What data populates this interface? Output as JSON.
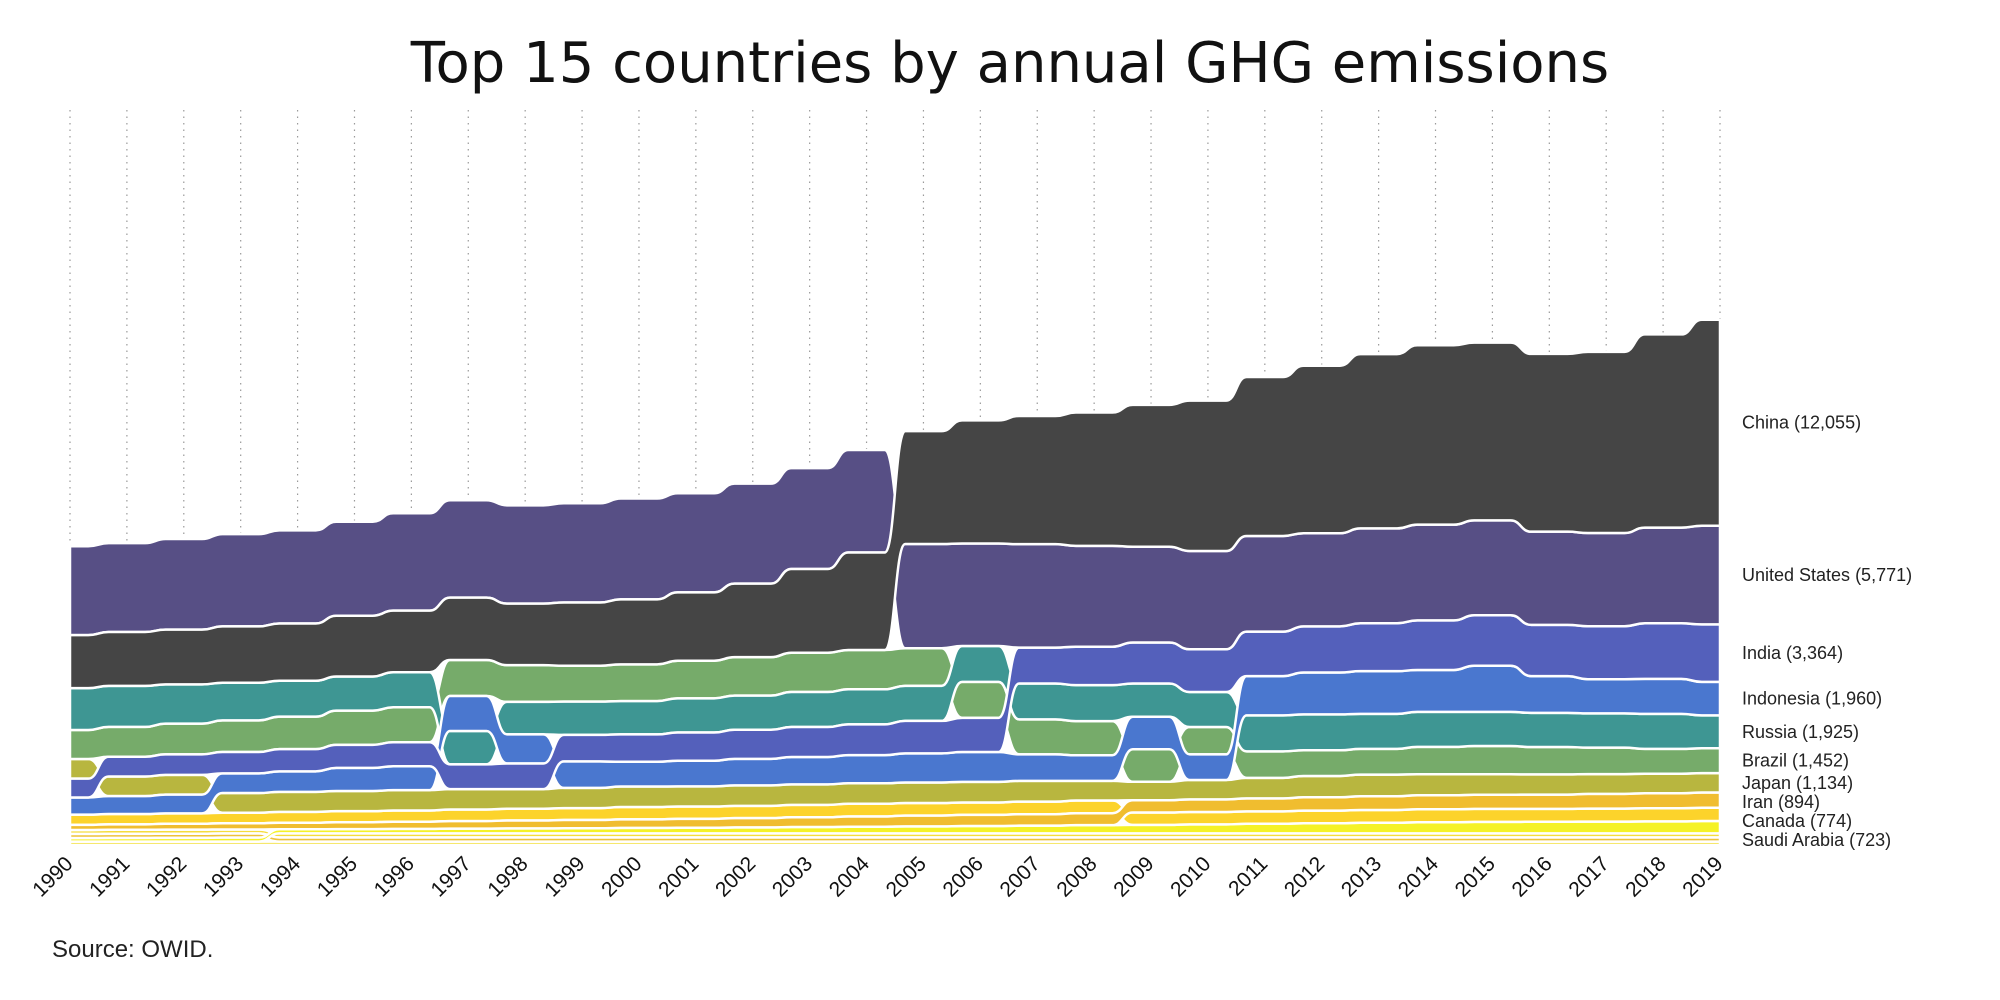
{
  "chart_data": {
    "type": "area",
    "title": "Top 15 countries by annual GHG emissions",
    "source": "Source: OWID.",
    "x": [
      1990,
      1991,
      1992,
      1993,
      1994,
      1995,
      1996,
      1997,
      1998,
      1999,
      2000,
      2001,
      2002,
      2003,
      2004,
      2005,
      2006,
      2007,
      2008,
      2009,
      2010,
      2011,
      2012,
      2013,
      2014,
      2015,
      2016,
      2017,
      2018,
      2019
    ],
    "units": "MtCO2e",
    "ylim": [
      0,
      43000
    ],
    "series": [
      {
        "name": "China",
        "end_label": "China (12,055)",
        "color": "#454545",
        "values": [
          3100,
          3150,
          3200,
          3300,
          3350,
          3550,
          3600,
          3650,
          3600,
          3700,
          3800,
          4000,
          4300,
          4900,
          5700,
          6600,
          7200,
          7500,
          7800,
          8300,
          8800,
          9300,
          9800,
          10200,
          10500,
          10400,
          10400,
          10600,
          11300,
          12055
        ]
      },
      {
        "name": "United States",
        "end_label": "United States (5,771)",
        "color": "#574f85",
        "values": [
          5200,
          5200,
          5300,
          5400,
          5450,
          5500,
          5700,
          5700,
          5750,
          5800,
          5900,
          5800,
          5850,
          5900,
          6000,
          6100,
          6000,
          6050,
          5900,
          5600,
          5750,
          5600,
          5450,
          5550,
          5600,
          5550,
          5450,
          5450,
          5600,
          5771
        ]
      },
      {
        "name": "India",
        "end_label": "India (3,364)",
        "color": "#5460bb",
        "values": [
          1100,
          1150,
          1200,
          1250,
          1300,
          1350,
          1400,
          1450,
          1500,
          1550,
          1600,
          1650,
          1700,
          1750,
          1800,
          1900,
          2000,
          2100,
          2250,
          2400,
          2500,
          2600,
          2700,
          2800,
          2900,
          2950,
          3000,
          3100,
          3250,
          3364
        ]
      },
      {
        "name": "Indonesia",
        "end_label": "Indonesia (1,960)",
        "color": "#4a77cf",
        "values": [
          1000,
          1050,
          1100,
          1150,
          1200,
          1350,
          1400,
          2050,
          1700,
          1550,
          1450,
          1500,
          1550,
          1600,
          1650,
          1700,
          1750,
          1550,
          1500,
          1900,
          1500,
          2300,
          2450,
          2500,
          2450,
          2700,
          2150,
          2000,
          2050,
          1960
        ]
      },
      {
        "name": "Russia",
        "end_label": "Russia (1,925)",
        "color": "#3e9693",
        "values": [
          2450,
          2400,
          2300,
          2200,
          2100,
          2000,
          2050,
          1950,
          1900,
          1950,
          1950,
          2000,
          2000,
          2050,
          2050,
          2050,
          2100,
          2100,
          2100,
          1950,
          2050,
          2100,
          2100,
          2050,
          2050,
          2000,
          2000,
          2000,
          2050,
          1925
        ]
      },
      {
        "name": "Brazil",
        "end_label": "Brazil (1,452)",
        "color": "#76ab6a",
        "values": [
          1700,
          1750,
          1800,
          1850,
          1900,
          2000,
          2050,
          2100,
          2150,
          2100,
          2150,
          2200,
          2250,
          2300,
          2300,
          2200,
          2100,
          2050,
          2000,
          1900,
          1600,
          1550,
          1500,
          1500,
          1600,
          1650,
          1600,
          1550,
          1450,
          1452
        ]
      },
      {
        "name": "Japan",
        "end_label": "Japan (1,134)",
        "color": "#b8b63f",
        "values": [
          1150,
          1150,
          1150,
          1150,
          1170,
          1180,
          1190,
          1190,
          1150,
          1180,
          1200,
          1180,
          1200,
          1200,
          1200,
          1200,
          1200,
          1210,
          1150,
          1080,
          1130,
          1200,
          1250,
          1270,
          1230,
          1200,
          1180,
          1160,
          1140,
          1134
        ]
      },
      {
        "name": "Iran",
        "end_label": "Iran (894)",
        "color": "#f0bd2f",
        "values": [
          300,
          320,
          340,
          360,
          380,
          400,
          420,
          440,
          460,
          480,
          500,
          520,
          540,
          570,
          600,
          630,
          650,
          670,
          700,
          720,
          740,
          760,
          780,
          800,
          820,
          830,
          840,
          860,
          880,
          894
        ]
      },
      {
        "name": "Canada",
        "end_label": "Canada (774)",
        "color": "#fcd32b",
        "values": [
          600,
          600,
          610,
          620,
          640,
          650,
          660,
          680,
          690,
          700,
          720,
          720,
          720,
          730,
          740,
          740,
          730,
          740,
          740,
          720,
          720,
          730,
          740,
          750,
          760,
          760,
          750,
          760,
          770,
          774
        ]
      },
      {
        "name": "Saudi Arabia",
        "end_label": "Saudi Arabia (723)",
        "color": "#f5f227",
        "values": [
          200,
          210,
          220,
          230,
          240,
          250,
          260,
          280,
          290,
          300,
          320,
          330,
          350,
          370,
          390,
          410,
          430,
          450,
          480,
          500,
          530,
          560,
          590,
          620,
          650,
          670,
          680,
          690,
          700,
          723
        ]
      },
      {
        "name": "",
        "end_label": "",
        "color": "#f5dd3c",
        "values": [
          240,
          240,
          240,
          240,
          240,
          240,
          240,
          240,
          240,
          240,
          240,
          240,
          240,
          240,
          240,
          240,
          240,
          240,
          240,
          240,
          240,
          240,
          240,
          240,
          240,
          240,
          240,
          240,
          240,
          240
        ]
      },
      {
        "name": "",
        "end_label": "",
        "color": "#eec23b",
        "values": [
          240,
          240,
          240,
          240,
          240,
          240,
          240,
          240,
          240,
          240,
          240,
          240,
          240,
          240,
          240,
          240,
          240,
          240,
          240,
          240,
          240,
          240,
          240,
          240,
          240,
          240,
          240,
          240,
          240,
          240
        ]
      },
      {
        "name": "",
        "end_label": "",
        "color": "#f2e03c",
        "values": [
          200,
          200,
          200,
          200,
          200,
          200,
          200,
          200,
          200,
          200,
          200,
          200,
          200,
          200,
          200,
          200,
          200,
          200,
          200,
          200,
          200,
          200,
          200,
          200,
          200,
          200,
          200,
          200,
          200,
          200
        ]
      }
    ]
  }
}
